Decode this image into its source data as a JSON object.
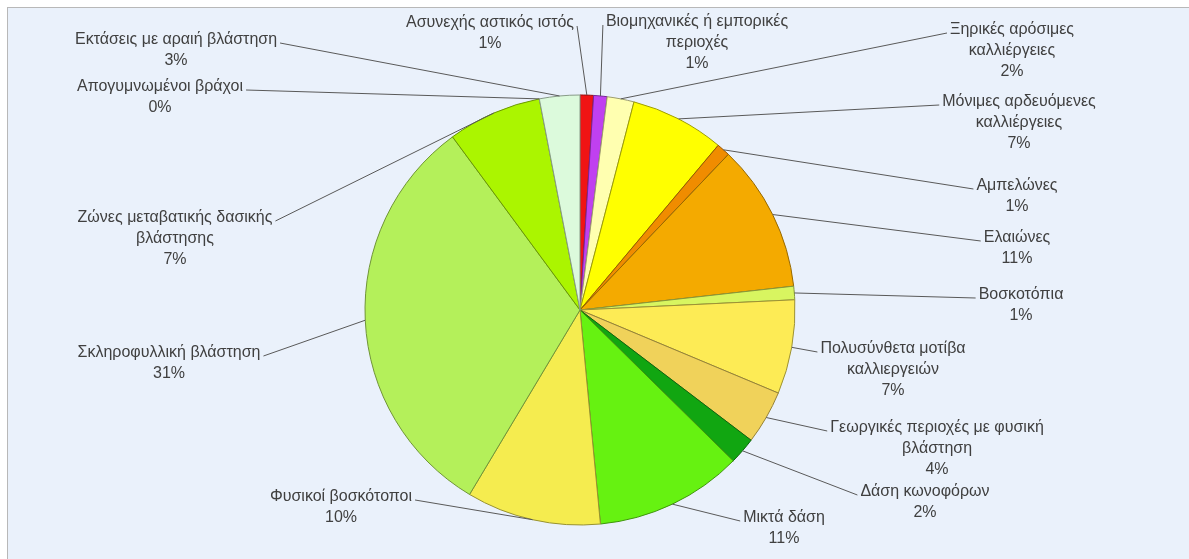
{
  "chart_data": {
    "type": "pie",
    "categories": [
      "Ασυνεχής αστικός ιστός",
      "Βιομηχανικές ή εμπορικές περιοχές",
      "Ξηρικές αρόσιμες καλλιέργειες",
      "Μόνιμες αρδευόμενες καλλιέργειες",
      "Αμπελώνες",
      "Ελαιώνες",
      "Βοσκοτόπια",
      "Πολυσύνθετα μοτίβα καλλιεργειών",
      "Γεωργικές περιοχές με φυσική βλάστηση",
      "Δάση κωνοφόρων",
      "Μικτά δάση",
      "Φυσικοί βοσκότοποι",
      "Σκληροφυλλική βλάστηση",
      "Ζώνες μεταβατικής δασικής βλάστησης",
      "Απογυμνωμένοι βράχοι",
      "Εκτάσεις με αραιή βλάστηση"
    ],
    "values": [
      1,
      1,
      2,
      7,
      1,
      11,
      1,
      7,
      4,
      2,
      11,
      10,
      31,
      7,
      0,
      3
    ],
    "colors": [
      "#f01414",
      "#c040f0",
      "#ffffb0",
      "#ffff00",
      "#f08c00",
      "#f4aa00",
      "#d8f560",
      "#fdeb55",
      "#f0d25a",
      "#11a611",
      "#66f211",
      "#f5ec4f",
      "#b4f05a",
      "#abf500",
      "#d9d9d9",
      "#dcfadc"
    ],
    "value_labels": [
      "1%",
      "1%",
      "2%",
      "7%",
      "1%",
      "11%",
      "1%",
      "7%",
      "4%",
      "2%",
      "11%",
      "10%",
      "31%",
      "7%",
      "0%",
      "3%"
    ]
  }
}
